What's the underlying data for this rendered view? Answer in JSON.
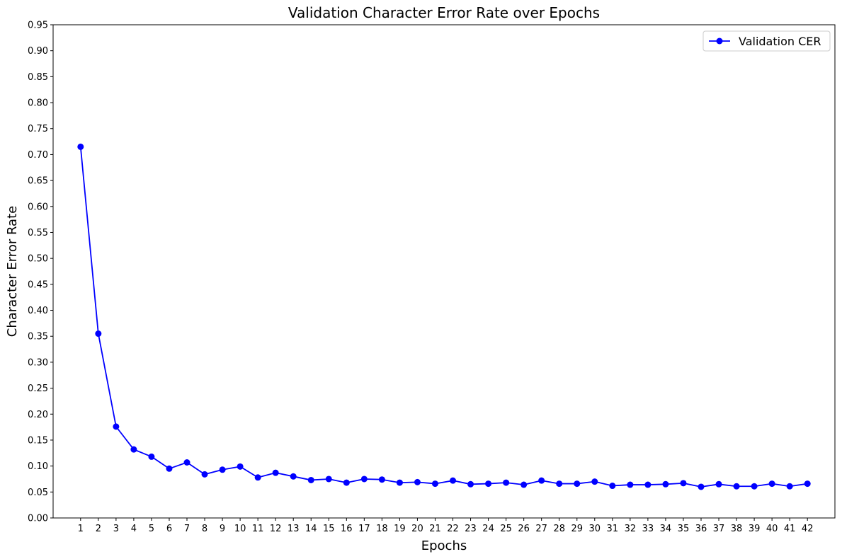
{
  "chart_data": {
    "type": "line",
    "title": "Validation Character Error Rate over Epochs",
    "xlabel": "Epochs",
    "ylabel": "Character Error Rate",
    "x": [
      1,
      2,
      3,
      4,
      5,
      6,
      7,
      8,
      9,
      10,
      11,
      12,
      13,
      14,
      15,
      16,
      17,
      18,
      19,
      20,
      21,
      22,
      23,
      24,
      25,
      26,
      27,
      28,
      29,
      30,
      31,
      32,
      33,
      34,
      35,
      36,
      37,
      38,
      39,
      40,
      41,
      42
    ],
    "xlim": [
      -0.55,
      43.55
    ],
    "ylim": [
      0,
      0.95
    ],
    "yticks": [
      "0.00",
      "0.05",
      "0.10",
      "0.15",
      "0.20",
      "0.25",
      "0.30",
      "0.35",
      "0.40",
      "0.45",
      "0.50",
      "0.55",
      "0.60",
      "0.65",
      "0.70",
      "0.75",
      "0.80",
      "0.85",
      "0.90",
      "0.95"
    ],
    "series": [
      {
        "name": "Validation CER",
        "color": "#0000ff",
        "marker": "circle",
        "values": [
          0.715,
          0.355,
          0.176,
          0.132,
          0.118,
          0.095,
          0.107,
          0.084,
          0.093,
          0.099,
          0.078,
          0.087,
          0.08,
          0.073,
          0.075,
          0.068,
          0.075,
          0.074,
          0.068,
          0.069,
          0.066,
          0.072,
          0.065,
          0.066,
          0.068,
          0.064,
          0.072,
          0.066,
          0.066,
          0.07,
          0.062,
          0.064,
          0.064,
          0.065,
          0.067,
          0.06,
          0.065,
          0.061,
          0.061,
          0.066,
          0.061,
          0.066
        ]
      }
    ],
    "grid": false,
    "legend": "top-right"
  }
}
